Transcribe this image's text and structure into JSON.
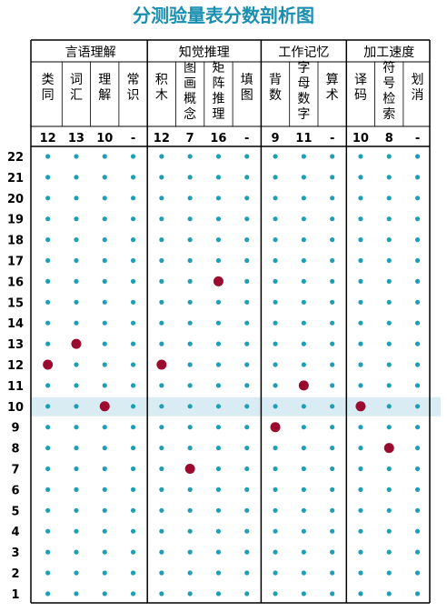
{
  "title": "分测验量表分数剖析图",
  "colors": {
    "dot": "#1e9fb5",
    "marker": "#9b0b30",
    "title": "#1a8fb0",
    "line": "#000000",
    "band": "#d9ecf3"
  },
  "chart_data": {
    "type": "scatter",
    "title": "分测验量表分数剖析图",
    "groups": [
      {
        "name": "言语理解",
        "subtests": [
          "类同",
          "词汇",
          "理解",
          "常识"
        ]
      },
      {
        "name": "知觉推理",
        "subtests": [
          "积木",
          "图画概念",
          "矩阵推理",
          "填图"
        ]
      },
      {
        "name": "工作记忆",
        "subtests": [
          "背数",
          "字母数字",
          "算术"
        ]
      },
      {
        "name": "加工速度",
        "subtests": [
          "译码",
          "符号检索",
          "划消"
        ]
      }
    ],
    "subtests": [
      {
        "name": "类同",
        "score": "12",
        "value": 12
      },
      {
        "name": "词汇",
        "score": "13",
        "value": 13
      },
      {
        "name": "理解",
        "score": "10",
        "value": 10
      },
      {
        "name": "常识",
        "score": "-",
        "value": null
      },
      {
        "name": "积木",
        "score": "12",
        "value": 12
      },
      {
        "name": "图画概念",
        "score": "7",
        "value": 7
      },
      {
        "name": "矩阵推理",
        "score": "16",
        "value": 16
      },
      {
        "name": "填图",
        "score": "-",
        "value": null
      },
      {
        "name": "背数",
        "score": "9",
        "value": 9
      },
      {
        "name": "字母数字",
        "score": "11",
        "value": 11
      },
      {
        "name": "算术",
        "score": "-",
        "value": null
      },
      {
        "name": "译码",
        "score": "10",
        "value": 10
      },
      {
        "name": "符号检索",
        "score": "8",
        "value": 8
      },
      {
        "name": "划消",
        "score": "-",
        "value": null
      }
    ],
    "y_ticks": [
      "22",
      "21",
      "20",
      "19",
      "18",
      "17",
      "16",
      "15",
      "14",
      "13",
      "12",
      "11",
      "10",
      "9",
      "8",
      "7",
      "6",
      "5",
      "4",
      "3",
      "2",
      "1"
    ],
    "ylim": [
      1,
      22
    ],
    "highlight_value": 10,
    "grid": false
  }
}
